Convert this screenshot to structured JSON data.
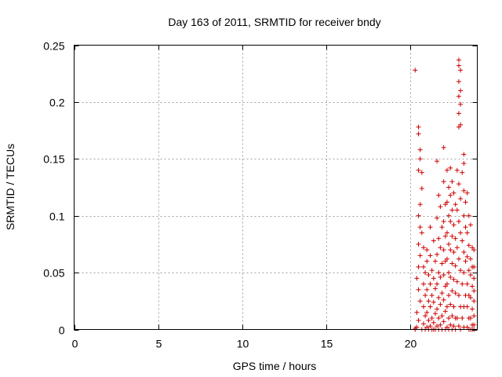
{
  "chart_data": {
    "type": "scatter",
    "title": "Day 163 of 2011, SRMTID for receiver bndy",
    "xlabel": "GPS time / hours",
    "ylabel": "SRMTID / TECUs",
    "xlim": [
      0,
      24
    ],
    "ylim": [
      0,
      0.25
    ],
    "xticks": [
      "0",
      "5",
      "10",
      "15",
      "20"
    ],
    "yticks": [
      "0",
      "0.05",
      "0.1",
      "0.15",
      "0.2",
      "0.25"
    ],
    "xtick_values": [
      0,
      5,
      10,
      15,
      20
    ],
    "ytick_values": [
      0,
      0.05,
      0.1,
      0.15,
      0.2,
      0.25
    ],
    "grid": true,
    "marker": "+",
    "color": "#cc0000",
    "series": [
      {
        "name": "SRMTID",
        "points": [
          [
            20.3,
            0.228
          ],
          [
            20.5,
            0.178
          ],
          [
            20.5,
            0.172
          ],
          [
            20.6,
            0.158
          ],
          [
            20.6,
            0.15
          ],
          [
            20.5,
            0.14
          ],
          [
            20.7,
            0.138
          ],
          [
            20.7,
            0.124
          ],
          [
            20.6,
            0.11
          ],
          [
            20.5,
            0.1
          ],
          [
            20.6,
            0.09
          ],
          [
            20.7,
            0.085
          ],
          [
            20.5,
            0.075
          ],
          [
            20.6,
            0.065
          ],
          [
            20.5,
            0.055
          ],
          [
            20.4,
            0.045
          ],
          [
            20.5,
            0.035
          ],
          [
            20.6,
            0.025
          ],
          [
            20.4,
            0.015
          ],
          [
            20.5,
            0.008
          ],
          [
            20.4,
            0.002
          ],
          [
            20.3,
            0.001
          ],
          [
            20.3,
            0.0
          ],
          [
            20.8,
            0.072
          ],
          [
            20.8,
            0.055
          ],
          [
            20.9,
            0.05
          ],
          [
            20.8,
            0.04
          ],
          [
            20.9,
            0.03
          ],
          [
            20.8,
            0.02
          ],
          [
            20.9,
            0.012
          ],
          [
            20.8,
            0.005
          ],
          [
            20.7,
            0.0
          ],
          [
            20.9,
            0.0
          ],
          [
            21.0,
            0.07
          ],
          [
            21.0,
            0.06
          ],
          [
            21.1,
            0.048
          ],
          [
            21.0,
            0.035
          ],
          [
            21.1,
            0.025
          ],
          [
            21.0,
            0.015
          ],
          [
            21.1,
            0.008
          ],
          [
            21.0,
            0.002
          ],
          [
            21.1,
            0.0
          ],
          [
            21.2,
            0.09
          ],
          [
            21.2,
            0.065
          ],
          [
            21.3,
            0.052
          ],
          [
            21.2,
            0.04
          ],
          [
            21.3,
            0.03
          ],
          [
            21.2,
            0.02
          ],
          [
            21.3,
            0.01
          ],
          [
            21.2,
            0.003
          ],
          [
            21.3,
            0.0
          ],
          [
            21.4,
            0.078
          ],
          [
            21.5,
            0.06
          ],
          [
            21.4,
            0.045
          ],
          [
            21.5,
            0.036
          ],
          [
            21.4,
            0.024
          ],
          [
            21.5,
            0.014
          ],
          [
            21.4,
            0.006
          ],
          [
            21.5,
            0.0
          ],
          [
            21.4,
            0.0
          ],
          [
            21.6,
            0.148
          ],
          [
            21.7,
            0.118
          ],
          [
            21.6,
            0.098
          ],
          [
            21.7,
            0.08
          ],
          [
            21.6,
            0.066
          ],
          [
            21.7,
            0.05
          ],
          [
            21.6,
            0.04
          ],
          [
            21.7,
            0.028
          ],
          [
            21.6,
            0.018
          ],
          [
            21.7,
            0.01
          ],
          [
            21.6,
            0.003
          ],
          [
            21.7,
            0.0
          ],
          [
            21.8,
            0.108
          ],
          [
            21.9,
            0.09
          ],
          [
            21.8,
            0.072
          ],
          [
            21.9,
            0.058
          ],
          [
            21.8,
            0.046
          ],
          [
            21.9,
            0.032
          ],
          [
            21.8,
            0.022
          ],
          [
            21.9,
            0.012
          ],
          [
            21.8,
            0.004
          ],
          [
            21.9,
            0.0
          ],
          [
            22.0,
            0.16
          ],
          [
            22.0,
            0.13
          ],
          [
            22.1,
            0.11
          ],
          [
            22.0,
            0.095
          ],
          [
            22.1,
            0.082
          ],
          [
            22.0,
            0.07
          ],
          [
            22.1,
            0.06
          ],
          [
            22.0,
            0.048
          ],
          [
            22.1,
            0.038
          ],
          [
            22.0,
            0.026
          ],
          [
            22.1,
            0.016
          ],
          [
            22.0,
            0.007
          ],
          [
            22.1,
            0.0
          ],
          [
            22.2,
            0.14
          ],
          [
            22.3,
            0.125
          ],
          [
            22.2,
            0.112
          ],
          [
            22.3,
            0.1
          ],
          [
            22.2,
            0.085
          ],
          [
            22.3,
            0.075
          ],
          [
            22.2,
            0.062
          ],
          [
            22.3,
            0.05
          ],
          [
            22.2,
            0.04
          ],
          [
            22.3,
            0.03
          ],
          [
            22.2,
            0.02
          ],
          [
            22.3,
            0.01
          ],
          [
            22.2,
            0.002
          ],
          [
            22.3,
            0.0
          ],
          [
            22.4,
            0.142
          ],
          [
            22.5,
            0.13
          ],
          [
            22.4,
            0.118
          ],
          [
            22.5,
            0.105
          ],
          [
            22.4,
            0.095
          ],
          [
            22.5,
            0.082
          ],
          [
            22.4,
            0.07
          ],
          [
            22.5,
            0.058
          ],
          [
            22.4,
            0.046
          ],
          [
            22.5,
            0.034
          ],
          [
            22.4,
            0.022
          ],
          [
            22.5,
            0.012
          ],
          [
            22.4,
            0.004
          ],
          [
            22.5,
            0.0
          ],
          [
            22.6,
            0.12
          ],
          [
            22.7,
            0.11
          ],
          [
            22.6,
            0.092
          ],
          [
            22.7,
            0.08
          ],
          [
            22.6,
            0.068
          ],
          [
            22.7,
            0.056
          ],
          [
            22.6,
            0.044
          ],
          [
            22.7,
            0.032
          ],
          [
            22.6,
            0.02
          ],
          [
            22.7,
            0.01
          ],
          [
            22.6,
            0.003
          ],
          [
            22.7,
            0.0
          ],
          [
            22.9,
            0.237
          ],
          [
            22.9,
            0.232
          ],
          [
            23.0,
            0.228
          ],
          [
            22.9,
            0.218
          ],
          [
            23.0,
            0.21
          ],
          [
            22.9,
            0.205
          ],
          [
            23.0,
            0.198
          ],
          [
            22.9,
            0.19
          ],
          [
            23.0,
            0.18
          ],
          [
            22.9,
            0.178
          ],
          [
            22.8,
            0.14
          ],
          [
            22.9,
            0.128
          ],
          [
            23.0,
            0.115
          ],
          [
            22.8,
            0.105
          ],
          [
            22.9,
            0.095
          ],
          [
            23.0,
            0.085
          ],
          [
            22.8,
            0.072
          ],
          [
            22.9,
            0.062
          ],
          [
            23.0,
            0.052
          ],
          [
            22.8,
            0.042
          ],
          [
            22.9,
            0.03
          ],
          [
            23.0,
            0.02
          ],
          [
            22.8,
            0.01
          ],
          [
            22.9,
            0.003
          ],
          [
            23.0,
            0.0
          ],
          [
            23.2,
            0.154
          ],
          [
            23.2,
            0.146
          ],
          [
            23.1,
            0.138
          ],
          [
            23.2,
            0.122
          ],
          [
            23.3,
            0.112
          ],
          [
            23.2,
            0.1
          ],
          [
            23.3,
            0.09
          ],
          [
            23.1,
            0.078
          ],
          [
            23.2,
            0.068
          ],
          [
            23.3,
            0.06
          ],
          [
            23.2,
            0.05
          ],
          [
            23.1,
            0.04
          ],
          [
            23.3,
            0.03
          ],
          [
            23.2,
            0.02
          ],
          [
            23.1,
            0.01
          ],
          [
            23.2,
            0.002
          ],
          [
            23.4,
            0.12
          ],
          [
            23.5,
            0.1
          ],
          [
            23.4,
            0.085
          ],
          [
            23.5,
            0.074
          ],
          [
            23.4,
            0.064
          ],
          [
            23.5,
            0.052
          ],
          [
            23.4,
            0.04
          ],
          [
            23.5,
            0.03
          ],
          [
            23.4,
            0.02
          ],
          [
            23.5,
            0.01
          ],
          [
            23.4,
            0.002
          ],
          [
            23.5,
            0.0
          ],
          [
            23.6,
            0.092
          ],
          [
            23.7,
            0.072
          ],
          [
            23.6,
            0.062
          ],
          [
            23.7,
            0.055
          ],
          [
            23.6,
            0.048
          ],
          [
            23.7,
            0.038
          ],
          [
            23.6,
            0.028
          ],
          [
            23.7,
            0.018
          ],
          [
            23.6,
            0.01
          ],
          [
            23.7,
            0.004
          ],
          [
            23.6,
            0.0
          ],
          [
            23.7,
            0.0
          ],
          [
            23.8,
            0.07
          ],
          [
            23.8,
            0.055
          ],
          [
            23.8,
            0.045
          ],
          [
            23.8,
            0.034
          ],
          [
            23.8,
            0.025
          ],
          [
            23.8,
            0.012
          ],
          [
            23.8,
            0.004
          ],
          [
            23.8,
            0.0
          ]
        ]
      }
    ]
  }
}
